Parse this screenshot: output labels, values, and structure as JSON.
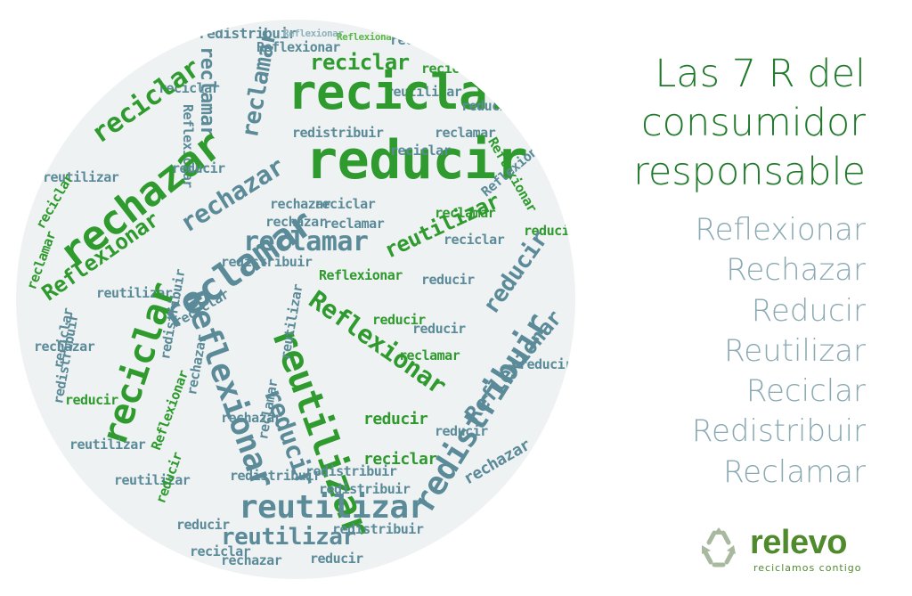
{
  "heading_lines": [
    "Las 7 R del",
    "consumidor",
    "responsable"
  ],
  "r_list": [
    "Reflexionar",
    "Rechazar",
    "Reducir",
    "Reutilizar",
    "Reciclar",
    "Redistribuir",
    "Reclamar"
  ],
  "logo": {
    "name": "relevo",
    "tagline": "reciclamos contigo",
    "icon": "recycle-icon"
  },
  "word_cloud": {
    "words": [
      "reciclar",
      "reducir",
      "rechazar",
      "reclamar",
      "Reflexionar",
      "reutilizar",
      "redistribuir"
    ]
  },
  "colors": {
    "heading": "#1f7a2a",
    "list": "#8aa9b3",
    "cloud_green": "#2f9a2e",
    "cloud_slate": "#5b8a98",
    "cloud_background": "#eef2f3",
    "logo": "#4f8a2c"
  }
}
